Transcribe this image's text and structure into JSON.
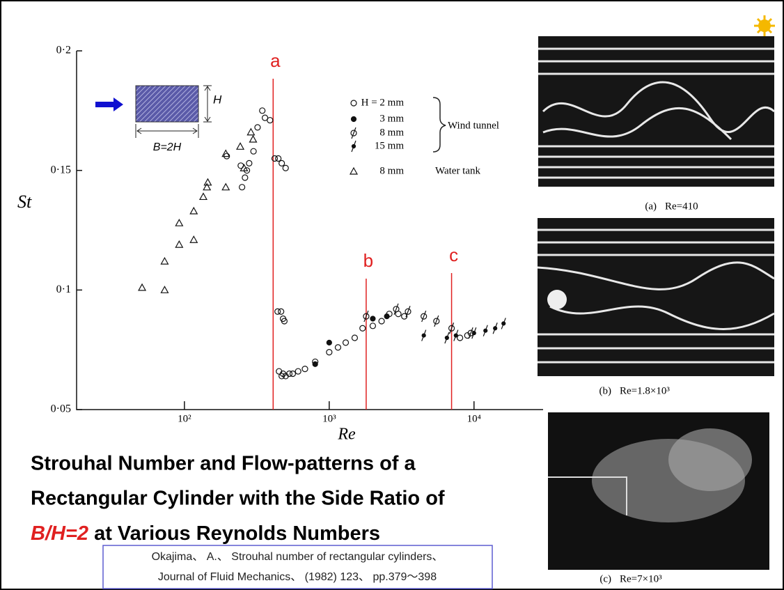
{
  "chart_data": {
    "type": "scatter",
    "x_label": "Re",
    "y_label": "St",
    "xscale": "log",
    "xlim": [
      18,
      30000
    ],
    "ylim": [
      0.05,
      0.2
    ],
    "xticks": [
      {
        "value": 100,
        "label": "10²"
      },
      {
        "value": 1000,
        "label": "10³"
      },
      {
        "value": 10000,
        "label": "10⁴"
      }
    ],
    "yticks": [
      {
        "value": 0.05,
        "label": "0·05"
      },
      {
        "value": 0.1,
        "label": "0·1"
      },
      {
        "value": 0.15,
        "label": "0·15"
      },
      {
        "value": 0.2,
        "label": "0·2"
      }
    ],
    "series": [
      {
        "name": "H = 2 mm",
        "color": "#111111",
        "marker": "circle-open",
        "x": [
          196,
          245,
          250,
          262,
          270,
          280,
          300,
          320,
          345,
          360,
          390,
          420,
          445,
          470,
          500,
          440,
          465,
          480,
          490,
          450,
          470,
          480,
          500,
          530,
          560,
          610,
          680,
          800,
          1000,
          1150,
          1300,
          1500,
          1700,
          2000,
          2300,
          2600,
          3000,
          3300,
          8000,
          9000
        ],
        "values": [
          0.156,
          0.152,
          0.143,
          0.147,
          0.15,
          0.153,
          0.158,
          0.168,
          0.175,
          0.172,
          0.171,
          0.155,
          0.155,
          0.153,
          0.151,
          0.091,
          0.091,
          0.088,
          0.087,
          0.066,
          0.064,
          0.065,
          0.064,
          0.065,
          0.065,
          0.066,
          0.067,
          0.07,
          0.074,
          0.076,
          0.078,
          0.08,
          0.084,
          0.085,
          0.087,
          0.09,
          0.09,
          0.089,
          0.08,
          0.081
        ]
      },
      {
        "name": "3 mm",
        "color": "#111111",
        "marker": "dot",
        "x": [
          800,
          1000,
          2000,
          2500
        ],
        "values": [
          0.069,
          0.078,
          0.088,
          0.089
        ]
      },
      {
        "name": "8 mm",
        "color": "#111111",
        "marker": "circle-slash",
        "x": [
          1800,
          2900,
          3500,
          4500,
          5500,
          7000,
          9500
        ],
        "values": [
          0.089,
          0.092,
          0.091,
          0.089,
          0.087,
          0.084,
          0.082
        ]
      },
      {
        "name": "15 mm",
        "color": "#111111",
        "marker": "dot-slash",
        "x": [
          4500,
          6500,
          7500,
          10000,
          12000,
          14000,
          16000
        ],
        "values": [
          0.081,
          0.08,
          0.081,
          0.082,
          0.083,
          0.084,
          0.086
        ]
      },
      {
        "name": "8 mm",
        "color": "#111111",
        "marker": "triangle-open",
        "x": [
          51,
          73,
          73,
          92,
          92,
          116,
          116,
          135,
          143,
          145,
          193,
          193,
          243,
          258,
          288,
          298
        ],
        "values": [
          0.101,
          0.1,
          0.112,
          0.119,
          0.128,
          0.121,
          0.133,
          0.139,
          0.143,
          0.145,
          0.143,
          0.157,
          0.16,
          0.151,
          0.166,
          0.163
        ]
      }
    ],
    "legend_groups": [
      "Wind tunnel",
      "Water tank"
    ],
    "annotations": [
      {
        "label": "a",
        "x": 410,
        "color": "#e02020"
      },
      {
        "label": "b",
        "x": 1800,
        "color": "#e02020"
      },
      {
        "label": "c",
        "x": 7000,
        "color": "#e02020"
      }
    ]
  },
  "diagram": {
    "height_label": "H",
    "width_label": "B=2H"
  },
  "photos": [
    {
      "tag": "(a)",
      "caption": "Re=410"
    },
    {
      "tag": "(b)",
      "caption": "Re=1.8×10³"
    },
    {
      "tag": "(c)",
      "caption": "Re=7×10³"
    }
  ],
  "title": {
    "lines": [
      "Strouhal Number and Flow-patterns of a",
      "Rectangular Cylinder with the Side Ratio of"
    ],
    "highlight": "B/H=2",
    "rest": " at Various Reynolds Numbers"
  },
  "citation": [
    "Okajima、 A.、 Strouhal number of rectangular cylinders、",
    "Journal of Fluid Mechanics、 (1982) 123、 pp.379～398"
  ]
}
